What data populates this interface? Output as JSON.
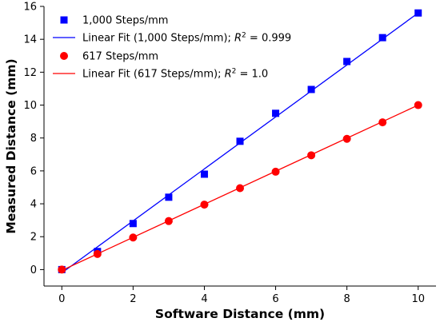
{
  "chart_data": {
    "type": "scatter",
    "xlabel": "Software Distance (mm)",
    "ylabel": "Measured Distance (mm)",
    "xlim": [
      -0.5,
      10.5
    ],
    "ylim": [
      -1,
      16
    ],
    "xticks": [
      0,
      2,
      4,
      6,
      8,
      10
    ],
    "yticks": [
      0,
      2,
      4,
      6,
      8,
      10,
      12,
      14,
      16
    ],
    "xtick_labels": [
      "0",
      "2",
      "4",
      "6",
      "8",
      "10"
    ],
    "ytick_labels": [
      "0",
      "2",
      "4",
      "6",
      "8",
      "10",
      "12",
      "14",
      "16"
    ],
    "grid": false,
    "legend_position": "top-left",
    "series": [
      {
        "name": "1,000 Steps/mm",
        "kind": "scatter",
        "marker": "square",
        "color": "#0000ff",
        "x": [
          0,
          1,
          2,
          3,
          4,
          5,
          6,
          7,
          8,
          9,
          10
        ],
        "y": [
          0.0,
          1.1,
          2.8,
          4.4,
          5.8,
          7.8,
          9.5,
          10.95,
          12.65,
          14.1,
          15.6
        ]
      },
      {
        "name": "Linear Fit (1,000 Steps/mm); ",
        "r2_label": "R",
        "r2_sup": "2",
        "r2_value": " = 0.999",
        "kind": "line",
        "color": "#0000ff",
        "x": [
          0,
          10
        ],
        "y": [
          -0.2,
          15.6
        ]
      },
      {
        "name": "617 Steps/mm",
        "kind": "scatter",
        "marker": "circle",
        "color": "#ff0000",
        "x": [
          0,
          1,
          2,
          3,
          4,
          5,
          6,
          7,
          8,
          9,
          10
        ],
        "y": [
          0.0,
          0.95,
          1.95,
          2.95,
          3.95,
          4.95,
          5.95,
          6.95,
          7.95,
          8.95,
          10.0
        ]
      },
      {
        "name": "Linear Fit (617 Steps/mm); ",
        "r2_label": "R",
        "r2_sup": "2",
        "r2_value": " = 1.0",
        "kind": "line",
        "color": "#ff0000",
        "x": [
          0,
          10
        ],
        "y": [
          -0.05,
          10.0
        ]
      }
    ]
  }
}
